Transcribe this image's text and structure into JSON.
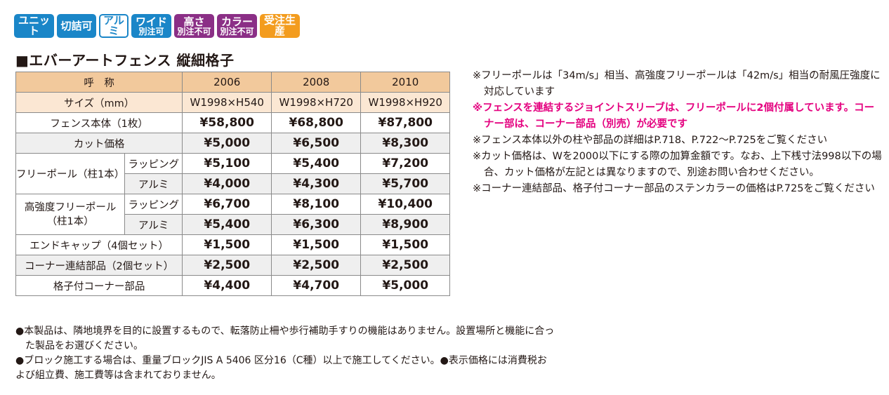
{
  "badges": [
    {
      "id": "unit",
      "line1": "ユニット",
      "line2": ""
    },
    {
      "id": "cut",
      "line1": "切詰可",
      "line2": ""
    },
    {
      "id": "alumi",
      "line1": "アルミ",
      "line2": ""
    },
    {
      "id": "wide",
      "line1": "ワイド",
      "line2": "別注可"
    },
    {
      "id": "height",
      "line1": "高さ",
      "line2": "別注不可"
    },
    {
      "id": "color",
      "line1": "カラー",
      "line2": "別注不可"
    },
    {
      "id": "order",
      "line1": "受注生産",
      "line2": ""
    }
  ],
  "colors": {
    "blue": "#1a86c8",
    "purple": "#8b2f86",
    "orange": "#f39c1e",
    "pink": "#e4007f",
    "header": "#f2c99c",
    "size_row": "#fbe7d3"
  },
  "title": "■エバーアートフェンス 縦細格子",
  "table": {
    "header": {
      "label": "呼　称",
      "cols": [
        "2006",
        "2008",
        "2010"
      ]
    },
    "size": {
      "label": "サイズ（mm）",
      "cols": [
        "W1998×H540",
        "W1998×H720",
        "W1998×H920"
      ]
    },
    "fence": {
      "label": "フェンス本体（1枚）",
      "cols": [
        "¥58,800",
        "¥68,800",
        "¥87,800"
      ]
    },
    "cut": {
      "label": "カット価格",
      "cols": [
        "¥5,000",
        "¥6,500",
        "¥8,300"
      ]
    },
    "free_pole": {
      "label": "フリーポール（柱1本）",
      "wrap": {
        "label": "ラッピング",
        "cols": [
          "¥5,100",
          "¥5,400",
          "¥7,200"
        ]
      },
      "alumi": {
        "label": "アルミ",
        "cols": [
          "¥4,000",
          "¥4,300",
          "¥5,700"
        ]
      }
    },
    "strong_pole": {
      "label1": "高強度フリーポール",
      "label2": "（柱1本）",
      "wrap": {
        "label": "ラッピング",
        "cols": [
          "¥6,700",
          "¥8,100",
          "¥10,400"
        ]
      },
      "alumi": {
        "label": "アルミ",
        "cols": [
          "¥5,400",
          "¥6,300",
          "¥8,900"
        ]
      }
    },
    "endcap": {
      "label": "エンドキャップ（4個セット）",
      "cols": [
        "¥1,500",
        "¥1,500",
        "¥1,500"
      ]
    },
    "corner": {
      "label": "コーナー連結部品（2個セット）",
      "cols": [
        "¥2,500",
        "¥2,500",
        "¥2,500"
      ]
    },
    "lattice_corner": {
      "label": "格子付コーナー部品",
      "cols": [
        "¥4,400",
        "¥4,700",
        "¥5,000"
      ]
    }
  },
  "notes_right": [
    "※フリーポールは「34m/s」相当、高強度フリーポールは「42m/s」相当の耐風圧強度に対応しています",
    "※フェンスを連結するジョイントスリーブは、フリーポールに2個付属しています。コーナー部は、コーナー部品（別売）が必要です",
    "※フェンス本体以外の柱や部品の詳細はP.718、P.722～P.725をご覧ください",
    "※カット価格は、Wを2000以下にする際の加算金額です。なお、上下桟寸法998以下の場合、カット価格が左記とは異なりますので、別途お問い合わせください。",
    "※コーナー連結部品、格子付コーナー部品のステンカラーの価格はP.725をご覧ください"
  ],
  "notes_bottom": [
    "●本製品は、隣地境界を目的に設置するもので、転落防止柵や歩行補助手すりの機能はありません。設置場所と機能に合った製品をお選びください。",
    "●ブロック施工する場合は、重量ブロックJIS A 5406 区分16（C種）以上で施工してください。●表示価格には消費税および組立費、施工費等は含まれておりません。"
  ]
}
